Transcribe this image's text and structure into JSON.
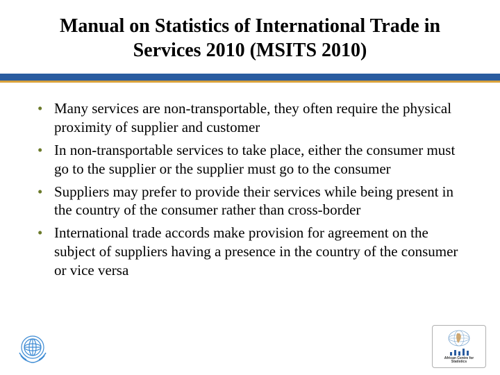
{
  "title": "Manual on Statistics of International Trade in Services 2010 (MSITS 2010)",
  "colors": {
    "blue_bar": "#2a5ca0",
    "gold_line": "#d9a23b",
    "bullet_color": "#6b7a2a",
    "un_logo": "#3d8bd4",
    "african_globe": "#7ea8d0",
    "african_bar": "#2a5ca0"
  },
  "bullets": [
    "Many services are non-transportable, they often require the physical proximity of supplier and customer",
    "In non-transportable services to take place, either the consumer must go to the supplier or the supplier must go to the consumer",
    "Suppliers may prefer to provide their services while being present in the country of the consumer rather than cross-border",
    "International trade accords make provision for agreement on the subject of suppliers having a presence in the country of the consumer or vice versa"
  ],
  "african_caption_line1": "African Centre for",
  "african_caption_line2": "Statistics",
  "african_bar_heights": [
    5,
    8,
    6,
    10,
    7
  ]
}
